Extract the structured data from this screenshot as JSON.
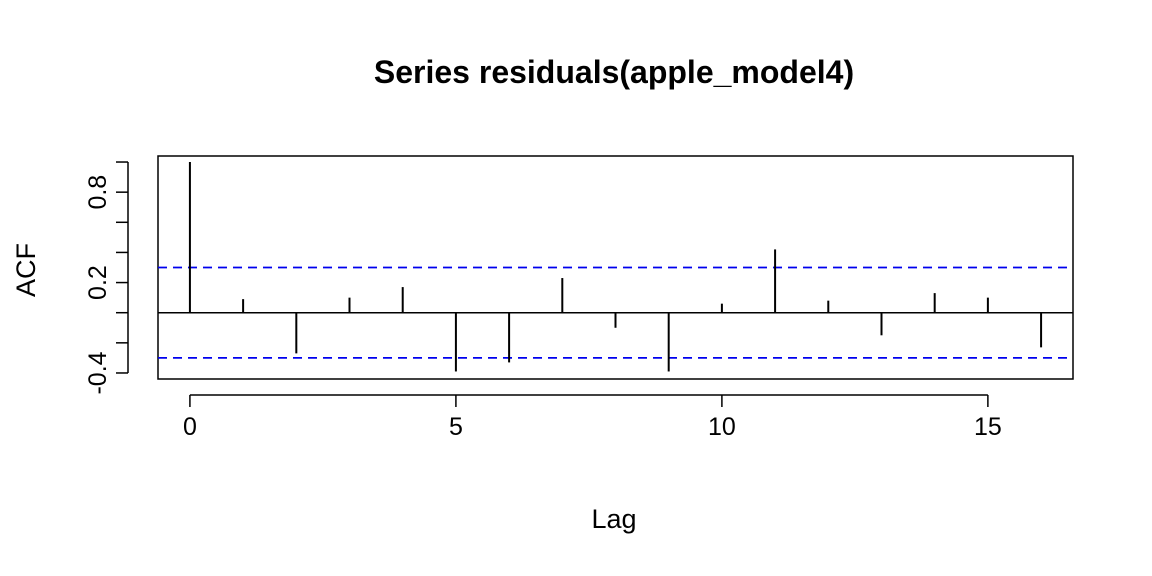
{
  "chart_data": {
    "type": "bar",
    "title": "Series  residuals(apple_model4)",
    "xlabel": "Lag",
    "ylabel": "ACF",
    "x": [
      0,
      1,
      2,
      3,
      4,
      5,
      6,
      7,
      8,
      9,
      10,
      11,
      12,
      13,
      14,
      15,
      16
    ],
    "values": [
      1.0,
      0.09,
      -0.27,
      0.1,
      0.17,
      -0.39,
      -0.33,
      0.23,
      -0.1,
      -0.39,
      0.06,
      0.42,
      0.08,
      -0.15,
      0.13,
      0.1,
      -0.23
    ],
    "xlim": [
      -0.6,
      16.6
    ],
    "ylim": [
      -0.44,
      1.04
    ],
    "x_ticks": [
      0,
      5,
      10,
      15
    ],
    "y_ticks": [
      -0.4,
      -0.2,
      0.0,
      0.2,
      0.4,
      0.6,
      0.8,
      1.0
    ],
    "y_tick_labels": [
      {
        "value": -0.4,
        "label": "-0.4"
      },
      {
        "value": 0.2,
        "label": "0.2"
      },
      {
        "value": 0.8,
        "label": "0.8"
      }
    ],
    "confidence_bounds": [
      0.3,
      -0.3
    ],
    "confidence_color": "#0000ee",
    "bar_color": "#000000",
    "grid": false
  }
}
